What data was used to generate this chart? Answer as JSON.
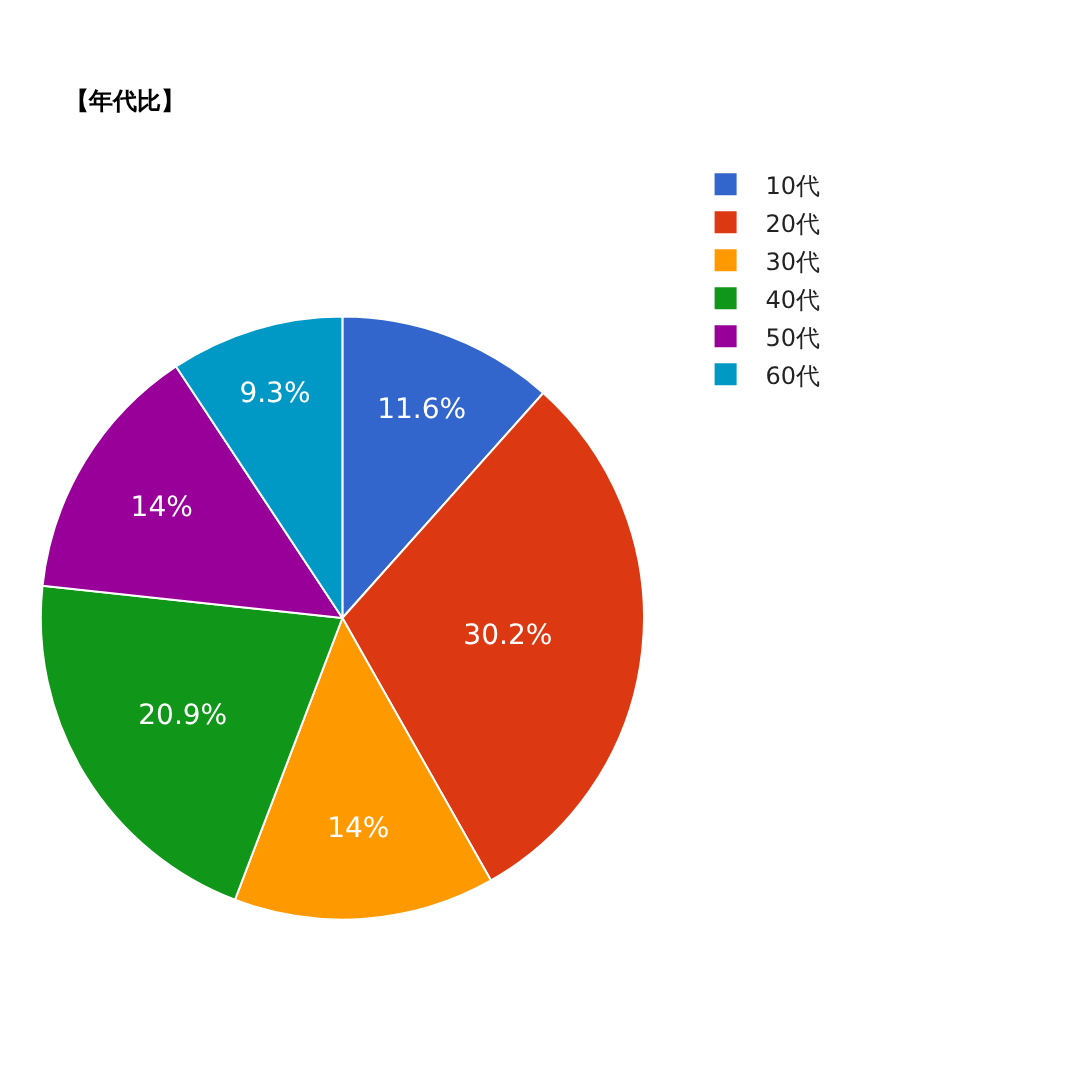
{
  "chart_data": {
    "type": "pie",
    "title": "【年代比】",
    "categories": [
      "10代",
      "20代",
      "30代",
      "40代",
      "50代",
      "60代"
    ],
    "values": [
      11.6,
      30.2,
      14,
      20.9,
      14,
      9.3
    ],
    "value_labels": [
      "11.6%",
      "30.2%",
      "14%",
      "20.9%",
      "14%",
      "9.3%"
    ],
    "colors": [
      "#3366cc",
      "#dc3912",
      "#ff9900",
      "#109618",
      "#990099",
      "#0099c6"
    ],
    "legend": "top right"
  }
}
